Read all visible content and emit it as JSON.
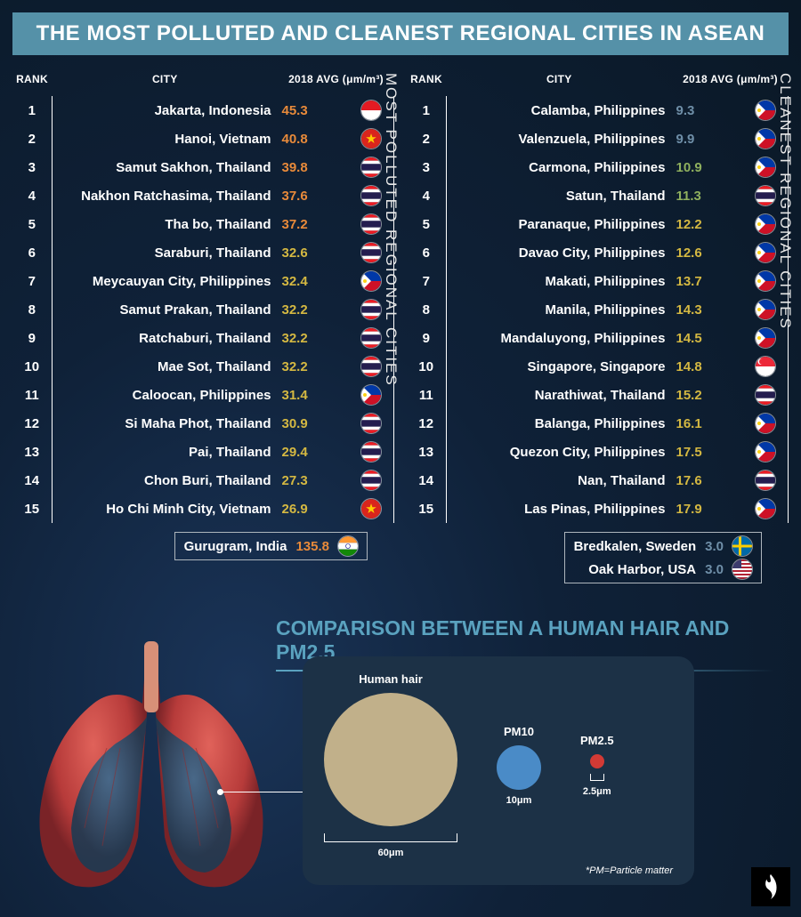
{
  "title": "THE MOST POLLUTED AND CLEANEST REGIONAL CITIES IN ASEAN",
  "columns": {
    "rank": "RANK",
    "city": "CITY",
    "avg": "2018 AVG (μm/m³)"
  },
  "polluted": {
    "label": "MOST POLLUTED REGIONAL CITIES",
    "rows": [
      {
        "rank": 1,
        "city": "Jakarta, Indonesia",
        "value": "45.3",
        "color": "#e88a3a",
        "flag": "id"
      },
      {
        "rank": 2,
        "city": "Hanoi, Vietnam",
        "value": "40.8",
        "color": "#e88a3a",
        "flag": "vn"
      },
      {
        "rank": 3,
        "city": "Samut Sakhon, Thailand",
        "value": "39.8",
        "color": "#e88a3a",
        "flag": "th"
      },
      {
        "rank": 4,
        "city": "Nakhon Ratchasima, Thailand",
        "value": "37.6",
        "color": "#e88a3a",
        "flag": "th"
      },
      {
        "rank": 5,
        "city": "Tha bo, Thailand",
        "value": "37.2",
        "color": "#e88a3a",
        "flag": "th"
      },
      {
        "rank": 6,
        "city": "Saraburi, Thailand",
        "value": "32.6",
        "color": "#d4b842",
        "flag": "th"
      },
      {
        "rank": 7,
        "city": "Meycauyan City, Philippines",
        "value": "32.4",
        "color": "#d4b842",
        "flag": "ph"
      },
      {
        "rank": 8,
        "city": "Samut Prakan, Thailand",
        "value": "32.2",
        "color": "#d4b842",
        "flag": "th"
      },
      {
        "rank": 9,
        "city": "Ratchaburi, Thailand",
        "value": "32.2",
        "color": "#d4b842",
        "flag": "th"
      },
      {
        "rank": 10,
        "city": "Mae Sot, Thailand",
        "value": "32.2",
        "color": "#d4b842",
        "flag": "th"
      },
      {
        "rank": 11,
        "city": "Caloocan, Philippines",
        "value": "31.4",
        "color": "#d4b842",
        "flag": "ph"
      },
      {
        "rank": 12,
        "city": "Si Maha Phot, Thailand",
        "value": "30.9",
        "color": "#d4b842",
        "flag": "th"
      },
      {
        "rank": 13,
        "city": "Pai, Thailand",
        "value": "29.4",
        "color": "#d4b842",
        "flag": "th"
      },
      {
        "rank": 14,
        "city": "Chon Buri, Thailand",
        "value": "27.3",
        "color": "#d4b842",
        "flag": "th"
      },
      {
        "rank": 15,
        "city": "Ho Chi Minh City, Vietnam",
        "value": "26.9",
        "color": "#d4b842",
        "flag": "vn"
      }
    ],
    "extras": [
      {
        "city": "Gurugram, India",
        "value": "135.8",
        "color": "#e88a3a",
        "flag": "in"
      }
    ]
  },
  "cleanest": {
    "label": "CLEANEST  REGIONAL CITIES",
    "rows": [
      {
        "rank": 1,
        "city": "Calamba, Philippines",
        "value": "9.3",
        "color": "#6f8fa8",
        "flag": "ph"
      },
      {
        "rank": 2,
        "city": "Valenzuela, Philippines",
        "value": "9.9",
        "color": "#6f8fa8",
        "flag": "ph"
      },
      {
        "rank": 3,
        "city": "Carmona, Philippines",
        "value": "10.9",
        "color": "#8fb05e",
        "flag": "ph"
      },
      {
        "rank": 4,
        "city": "Satun, Thailand",
        "value": "11.3",
        "color": "#8fb05e",
        "flag": "th"
      },
      {
        "rank": 5,
        "city": "Paranaque, Philippines",
        "value": "12.2",
        "color": "#d4b842",
        "flag": "ph"
      },
      {
        "rank": 6,
        "city": "Davao City, Philippines",
        "value": "12.6",
        "color": "#d4b842",
        "flag": "ph"
      },
      {
        "rank": 7,
        "city": "Makati, Philippines",
        "value": "13.7",
        "color": "#d4b842",
        "flag": "ph"
      },
      {
        "rank": 8,
        "city": "Manila, Philippines",
        "value": "14.3",
        "color": "#d4b842",
        "flag": "ph"
      },
      {
        "rank": 9,
        "city": "Mandaluyong, Philippines",
        "value": "14.5",
        "color": "#d4b842",
        "flag": "ph"
      },
      {
        "rank": 10,
        "city": "Singapore, Singapore",
        "value": "14.8",
        "color": "#d4b842",
        "flag": "sg"
      },
      {
        "rank": 11,
        "city": "Narathiwat, Thailand",
        "value": "15.2",
        "color": "#d4b842",
        "flag": "th"
      },
      {
        "rank": 12,
        "city": "Balanga, Philippines",
        "value": "16.1",
        "color": "#d4b842",
        "flag": "ph"
      },
      {
        "rank": 13,
        "city": "Quezon City, Philippines",
        "value": "17.5",
        "color": "#d4b842",
        "flag": "ph"
      },
      {
        "rank": 14,
        "city": "Nan, Thailand",
        "value": "17.6",
        "color": "#d4b842",
        "flag": "th"
      },
      {
        "rank": 15,
        "city": "Las Pinas, Philippines",
        "value": "17.9",
        "color": "#d4b842",
        "flag": "ph"
      }
    ],
    "extras": [
      {
        "city": "Bredkalen, Sweden",
        "value": "3.0",
        "color": "#6f8fa8",
        "flag": "se"
      },
      {
        "city": "Oak Harbor, USA",
        "value": "3.0",
        "color": "#6f8fa8",
        "flag": "us"
      }
    ]
  },
  "comparison": {
    "title": "COMPARISON BETWEEN A HUMAN HAIR AND PM2.5",
    "hair_label": "Human hair",
    "hair_measure": "60μm",
    "pm10_label": "PM10",
    "pm10_measure": "10μm",
    "pm25_label": "PM2.5",
    "pm25_measure": "2.5μm",
    "footnote": "*PM=Particle matter"
  },
  "flags": {
    "id": {
      "stripes": [
        "#e31b23",
        "#ffffff"
      ]
    },
    "vn": {
      "bg": "#da251d",
      "star": "#ffcd00"
    },
    "th": {
      "stripes": [
        "#ed1c24",
        "#ffffff",
        "#241d4f",
        "#241d4f",
        "#ffffff",
        "#ed1c24"
      ]
    },
    "ph": {
      "top": "#0038a8",
      "bottom": "#ce1126",
      "tri": "#ffffff",
      "sun": "#fcd116"
    },
    "in": {
      "stripes": [
        "#ff9933",
        "#ffffff",
        "#138808"
      ],
      "chakra": "#000088"
    },
    "sg": {
      "top": "#ed2939",
      "bottom": "#ffffff"
    },
    "se": {
      "bg": "#006aa7",
      "cross": "#fecc00"
    },
    "us": {
      "stripes": [
        "#b22234",
        "#ffffff"
      ],
      "canton": "#3c3b6e"
    }
  }
}
